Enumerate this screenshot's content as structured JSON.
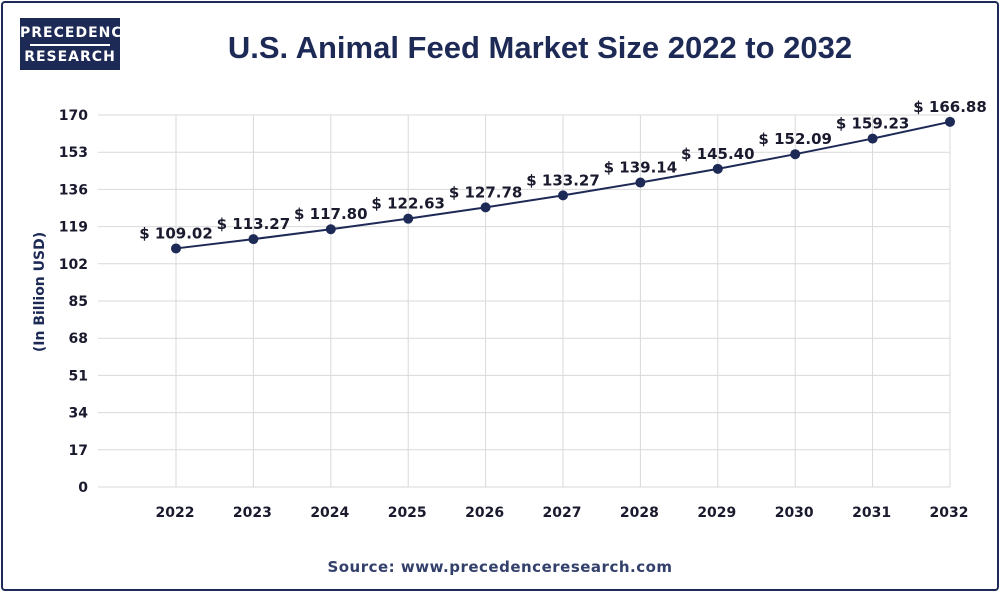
{
  "logo": {
    "line1": "PRECEDENCE",
    "line2": "RESEARCH"
  },
  "footer": {
    "source": "Source: www.precedenceresearch.com"
  },
  "colors": {
    "navy": "#1e2a56",
    "grid": "#d9d9d9",
    "frame": "#1e2a56"
  },
  "chart_data": {
    "type": "line",
    "title": "U.S. Animal Feed Market Size 2022 to 2032",
    "xlabel": "",
    "ylabel": "(In Billion USD)",
    "x": [
      "2022",
      "2023",
      "2024",
      "2025",
      "2026",
      "2027",
      "2028",
      "2029",
      "2030",
      "2031",
      "2032"
    ],
    "values": [
      109.02,
      113.27,
      117.8,
      122.63,
      127.78,
      133.27,
      139.14,
      145.4,
      152.09,
      159.23,
      166.88
    ],
    "data_labels": [
      "$ 109.02",
      "$ 113.27",
      "$ 117.80",
      "$ 122.63",
      "$ 127.78",
      "$ 133.27",
      "$ 139.14",
      "$ 145.40",
      "$ 152.09",
      "$ 159.23",
      "$ 166.88"
    ],
    "yticks": [
      0,
      17,
      34,
      51,
      68,
      85,
      102,
      119,
      136,
      153,
      170
    ],
    "ylim": [
      0,
      170
    ],
    "grid": true,
    "legend": "none"
  }
}
